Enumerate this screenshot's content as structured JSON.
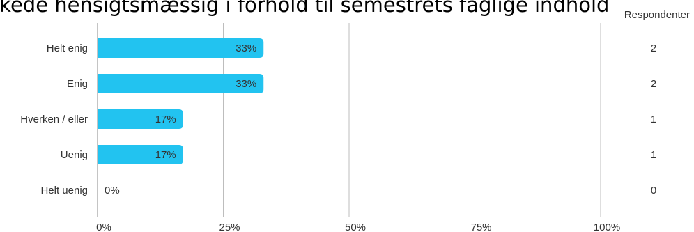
{
  "title": "Virkede hensigtsmæssig i forhold til semestrets faglige indhold",
  "respondents_header": "Respondenter",
  "colors": {
    "bar": "#22c3f0",
    "grid": "#bdbdbd",
    "axis": "#9e9e9e",
    "text": "#333333"
  },
  "chart_data": {
    "type": "bar",
    "orientation": "horizontal",
    "categories": [
      "Helt enig",
      "Enig",
      "Hverken / eller",
      "Uenig",
      "Helt uenig"
    ],
    "values": [
      33,
      33,
      17,
      17,
      0
    ],
    "value_labels": [
      "33%",
      "33%",
      "17%",
      "17%",
      "0%"
    ],
    "respondents": [
      "2",
      "2",
      "1",
      "1",
      "0"
    ],
    "xlim": [
      0,
      100
    ],
    "xticks": [
      0,
      25,
      50,
      75,
      100
    ],
    "xtick_labels": [
      "0%",
      "25%",
      "50%",
      "75%",
      "100%"
    ],
    "grid": true,
    "legend": false
  }
}
